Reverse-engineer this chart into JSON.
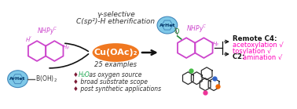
{
  "bg_color": "#ffffff",
  "mol_color": "#cc44cc",
  "arhet_fill": "#7ec8e8",
  "arhet_edge": "#4488bb",
  "arhet_text_color": "#003366",
  "arhet_label": "ArHet",
  "arrow_color": "#111111",
  "catalyst_fill": "#f07820",
  "catalyst_text": "Cu(OAc)₂",
  "reaction_line1": "γ-selective",
  "reaction_line2": "C(sp²)-H etherification",
  "examples_text": "25 examples",
  "bullet_diamond_color": "#7b1a35",
  "bullet_h2o_color": "#22aa55",
  "bullet1_pre": "H₂O",
  "bullet1_post": " as oxygen source",
  "bullet2": " broad substrate scope",
  "bullet3": " post synthetic applications",
  "product_color": "#cc44cc",
  "ether_o_color": "#228833",
  "nhpyc_color": "#cc44cc",
  "hbeta_color": "#cc44cc",
  "pink_color": "#ff00bb",
  "black": "#111111",
  "remote_c4": "Remote C4:",
  "acetoxylation": "acetoxylation √",
  "tosylation": "tosylation √",
  "c2": "C2:",
  "amination": "amination √",
  "crystal_dark": "#2a2a2a",
  "crystal_green": "#44bb44",
  "crystal_pink": "#ee3399",
  "crystal_blue": "#3366cc",
  "crystal_orange": "#ee6600"
}
